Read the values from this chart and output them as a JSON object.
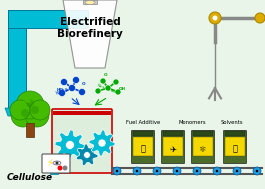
{
  "bg_color": "#e8f5e8",
  "title_text": "Electrified\nBiorefinery",
  "title_fontsize": 7.5,
  "cellulose_text": "Cellulose",
  "labels": [
    "Fuel Additive",
    "Monomers",
    "Solvents"
  ],
  "conveyor_color": "#888888",
  "barrel_dark": "#4a6b2a",
  "barrel_yellow": "#f5d800",
  "cyan_pipe": "#00bcd4",
  "gear_color": "#00bcd4",
  "gear_dark": "#0088aa",
  "tree_green": "#44bb00",
  "tree_dark": "#228800",
  "tree_trunk": "#8B4513",
  "bolt_yellow": "#ffdd00",
  "reactor_border": "#cc0000",
  "reactor_fill": "#ddeedd",
  "molecule_blue": "#0044cc",
  "molecule_green": "#00aa00",
  "pulley_yellow": "#ddaa00",
  "rail_color": "#555555",
  "wheel_blue": "#2299dd",
  "lamp_gray": "#aaaaaa"
}
